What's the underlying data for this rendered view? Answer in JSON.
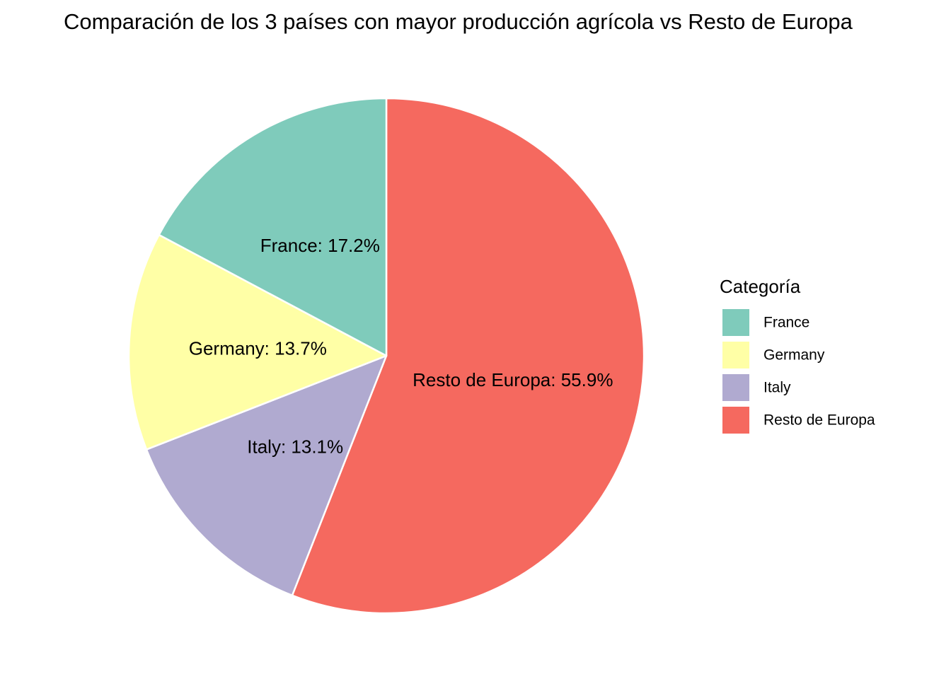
{
  "chart_data": {
    "type": "pie",
    "title": "Comparación de los 3 países con mayor producción agrícola vs Resto de Europa",
    "slices": [
      {
        "category": "France",
        "value": 17.2,
        "label": "France: 17.2%",
        "color": "#7FCBBB"
      },
      {
        "category": "Germany",
        "value": 13.7,
        "label": "Germany: 13.7%",
        "color": "#FFFFA6"
      },
      {
        "category": "Italy",
        "value": 13.1,
        "label": "Italy: 13.1%",
        "color": "#B0AAD0"
      },
      {
        "category": "Resto de Europa",
        "value": 55.9,
        "label": "Resto de Europa: 55.9%",
        "color": "#F5695F"
      }
    ],
    "legend": {
      "title": "Categoría",
      "position": "right"
    }
  }
}
